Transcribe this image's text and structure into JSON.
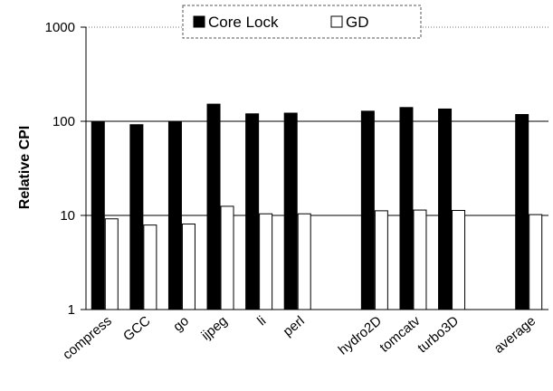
{
  "chart_data": {
    "type": "bar",
    "title": "",
    "xlabel": "",
    "ylabel": "Relative CPI",
    "yscale": "log",
    "ylim": [
      1,
      1000
    ],
    "yticks": [
      "1",
      "10",
      "100",
      "1000"
    ],
    "grid": "horizontal major lines",
    "legend_position": "top",
    "categories": [
      "compress",
      "GCC",
      "go",
      "ijpeg",
      "li",
      "perl",
      "",
      "hydro2D",
      "tomcatv",
      "turbo3D",
      "",
      "average"
    ],
    "series": [
      {
        "name": "Core Lock",
        "color": "#000000",
        "values": [
          100,
          92,
          100,
          152,
          120,
          122,
          null,
          128,
          140,
          135,
          null,
          118
        ]
      },
      {
        "name": "GD",
        "color": "#ffffff",
        "values": [
          9.2,
          7.9,
          8.1,
          12.5,
          10.4,
          10.4,
          null,
          11.2,
          11.4,
          11.3,
          null,
          10.2
        ]
      }
    ]
  }
}
